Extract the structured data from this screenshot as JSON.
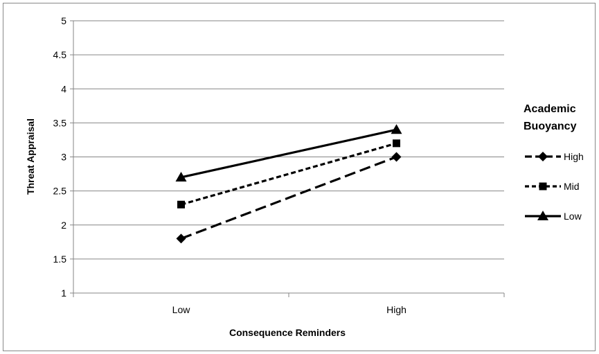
{
  "chart_data": {
    "type": "line",
    "title": "",
    "xlabel": "Consequence Reminders",
    "ylabel": "Threat Appraisal",
    "categories": [
      "Low",
      "High"
    ],
    "ylim": [
      1,
      5
    ],
    "yticks": [
      "1",
      "1.5",
      "2",
      "2.5",
      "3",
      "3.5",
      "4",
      "4.5",
      "5"
    ],
    "grid": "horizontal",
    "legend": {
      "title_line1": "Academic",
      "title_line2": "Buoyancy",
      "position": "right"
    },
    "series": [
      {
        "name": "High",
        "values": [
          1.8,
          3.0
        ],
        "marker": "diamond",
        "dash": "long-dash",
        "color": "#000000"
      },
      {
        "name": "Mid",
        "values": [
          2.3,
          3.2
        ],
        "marker": "square",
        "dash": "short-dash",
        "color": "#000000"
      },
      {
        "name": "Low",
        "values": [
          2.7,
          3.4
        ],
        "marker": "triangle",
        "dash": "solid",
        "color": "#000000"
      }
    ]
  }
}
